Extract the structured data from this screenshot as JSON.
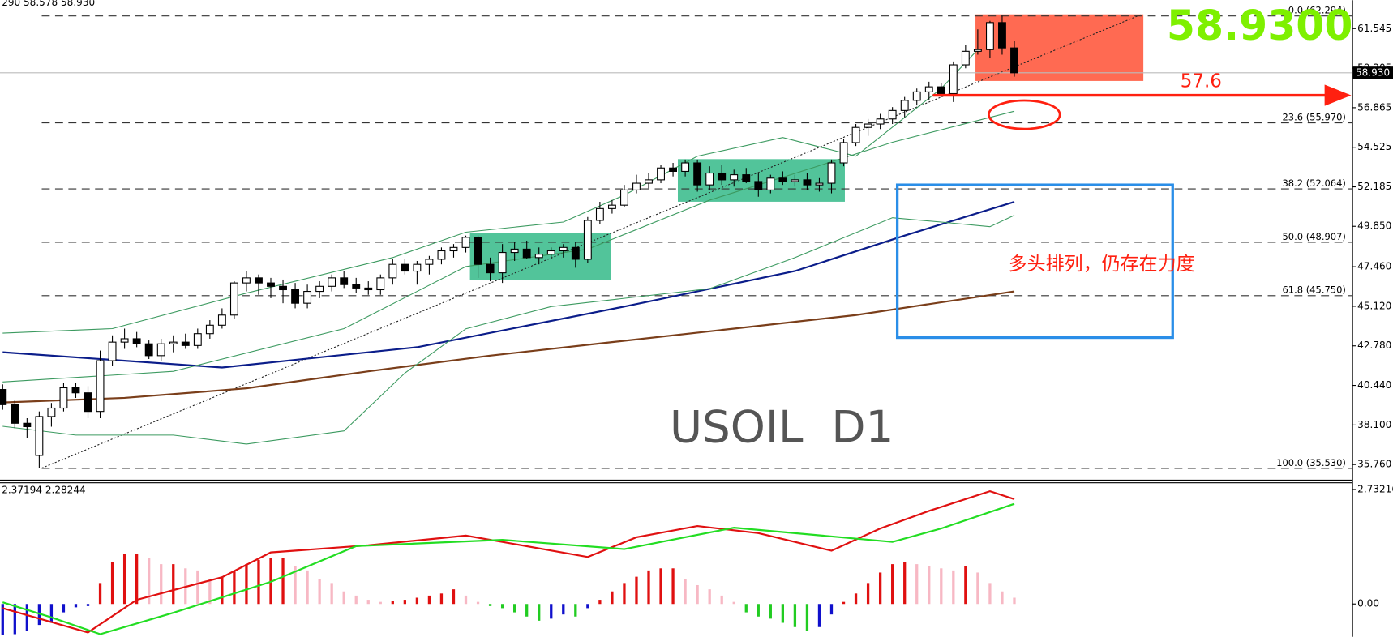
{
  "chart_data": [
    {
      "type": "candlestick",
      "title": "290 58.578 58.930",
      "open": [
        40.2,
        39.3,
        38.2,
        36.3,
        38.6,
        39.1,
        40.3,
        40.0,
        38.9,
        41.9,
        43.0,
        43.2,
        42.9,
        42.2,
        42.9,
        43.0,
        42.8,
        43.5,
        44.0,
        44.6,
        46.5,
        46.8,
        46.5,
        46.3,
        46.1,
        45.3,
        46.0,
        46.3,
        46.8,
        46.4,
        46.2,
        46.1,
        46.8,
        47.6,
        47.2,
        47.6,
        47.9,
        48.4,
        48.6,
        49.2,
        47.6,
        47.1,
        48.3,
        48.5,
        48.0,
        48.2,
        48.4,
        48.6,
        47.9,
        50.2,
        50.9,
        51.1,
        52.0,
        52.4,
        52.6,
        53.3,
        53.1,
        53.6,
        52.3,
        53.0,
        52.6,
        52.9,
        52.5,
        52.0,
        52.7,
        52.5,
        52.6,
        52.3,
        52.4,
        53.6,
        54.8,
        55.7,
        55.9,
        56.2,
        56.7,
        57.3,
        57.8,
        58.1,
        57.7,
        59.4,
        60.2,
        60.3,
        61.9,
        60.4
      ],
      "high": [
        40.5,
        39.6,
        38.5,
        38.9,
        39.4,
        40.6,
        40.6,
        40.4,
        42.5,
        43.4,
        43.8,
        43.6,
        43.1,
        43.2,
        43.4,
        43.5,
        43.8,
        44.3,
        45.0,
        46.6,
        47.2,
        47.0,
        46.8,
        46.7,
        46.5,
        46.4,
        46.6,
        47.0,
        47.2,
        46.8,
        46.6,
        47.0,
        47.9,
        47.9,
        47.8,
        48.1,
        48.6,
        48.8,
        49.3,
        49.3,
        48.0,
        48.8,
        48.9,
        49.0,
        48.6,
        48.6,
        48.8,
        48.9,
        50.4,
        51.3,
        51.4,
        52.3,
        52.9,
        53.0,
        53.5,
        53.6,
        53.8,
        53.8,
        53.4,
        53.5,
        53.2,
        53.3,
        53.0,
        52.9,
        53.1,
        52.9,
        53.0,
        52.7,
        53.8,
        55.0,
        55.9,
        56.2,
        56.5,
        56.9,
        57.5,
        58.0,
        58.4,
        58.3,
        59.6,
        60.6,
        61.5,
        62.0,
        62.3,
        60.8
      ],
      "low": [
        39.0,
        37.9,
        37.3,
        35.53,
        38.0,
        38.9,
        39.7,
        38.5,
        38.5,
        41.6,
        42.6,
        42.7,
        42.0,
        41.9,
        42.4,
        42.6,
        42.6,
        43.2,
        43.8,
        44.4,
        46.0,
        45.8,
        45.6,
        45.3,
        45.0,
        45.0,
        45.6,
        46.0,
        46.2,
        45.9,
        45.8,
        45.8,
        46.4,
        47.0,
        46.4,
        47.0,
        47.6,
        48.0,
        48.3,
        46.8,
        46.6,
        46.5,
        47.8,
        47.9,
        47.6,
        47.9,
        48.0,
        47.4,
        47.7,
        50.0,
        50.6,
        51.0,
        51.8,
        52.1,
        52.4,
        52.8,
        52.8,
        51.9,
        52.0,
        52.3,
        52.2,
        52.4,
        51.6,
        51.8,
        52.3,
        52.2,
        52.0,
        51.9,
        51.8,
        53.4,
        54.6,
        55.2,
        55.6,
        55.9,
        56.3,
        57.0,
        57.3,
        57.5,
        57.2,
        59.2,
        60.0,
        59.8,
        60.0,
        58.7
      ],
      "close": [
        39.3,
        38.2,
        38.0,
        38.6,
        39.1,
        40.3,
        40.0,
        38.9,
        41.9,
        43.0,
        43.2,
        42.9,
        42.2,
        42.9,
        43.0,
        42.8,
        43.5,
        44.0,
        44.6,
        46.5,
        46.8,
        46.5,
        46.3,
        46.1,
        45.3,
        46.0,
        46.3,
        46.8,
        46.4,
        46.2,
        46.1,
        46.8,
        47.6,
        47.2,
        47.6,
        47.9,
        48.4,
        48.6,
        49.2,
        47.6,
        47.1,
        48.3,
        48.5,
        48.0,
        48.2,
        48.4,
        48.6,
        47.9,
        50.2,
        50.9,
        51.1,
        52.0,
        52.4,
        52.6,
        53.3,
        53.1,
        53.6,
        52.3,
        53.0,
        52.6,
        52.9,
        52.5,
        52.0,
        52.7,
        52.5,
        52.6,
        52.3,
        52.4,
        53.6,
        54.8,
        55.7,
        55.9,
        56.2,
        56.7,
        57.3,
        57.8,
        58.1,
        57.7,
        59.4,
        60.2,
        60.3,
        61.9,
        60.4,
        58.93
      ],
      "up_color": "#ffffff",
      "down_color": "#000000",
      "ylim": [
        34.812,
        63.226
      ],
      "yticks": [
        61.545,
        59.205,
        56.865,
        54.525,
        52.185,
        {
          "value": 49.85,
          "label": "49.850"
        },
        {
          "value": 47.46,
          "label": "47.460"
        },
        {
          "value": 45.12,
          "label": "45.120"
        },
        {
          "value": 42.78,
          "label": "42.780"
        },
        {
          "value": 40.44,
          "label": "40.440"
        },
        {
          "value": 38.1,
          "label": "38.100"
        },
        {
          "value": 35.76,
          "label": "35.760"
        }
      ],
      "last_price": {
        "value": 58.93,
        "label": "58.930"
      },
      "overlays": [
        {
          "color": "#0b1d8a",
          "width": 2,
          "x": [
            0,
            18,
            34,
            51,
            65,
            74,
            83
          ],
          "values": [
            42.4,
            41.5,
            42.7,
            45.1,
            47.2,
            49.3,
            51.3
          ]
        },
        {
          "color": "#7a3e1a",
          "width": 2,
          "x": [
            0,
            10,
            20,
            30,
            40,
            50,
            60,
            70,
            83
          ],
          "values": [
            39.43,
            39.7,
            40.27,
            41.27,
            42.2,
            43.0,
            43.8,
            44.6,
            46.0
          ]
        },
        {
          "color": "#3c9a60",
          "width": 1,
          "x": [
            0,
            9,
            20,
            32,
            38,
            46,
            51,
            57,
            64,
            70,
            77,
            80
          ],
          "values": [
            43.53,
            43.8,
            45.9,
            48.0,
            49.5,
            50.1,
            51.7,
            54.0,
            55.1,
            54.0,
            58.0,
            60.3
          ]
        },
        {
          "color": "#3c9a60",
          "width": 1,
          "x": [
            0,
            14,
            28,
            38,
            48,
            58,
            65,
            73,
            83
          ],
          "values": [
            40.64,
            41.27,
            43.8,
            47.47,
            48.5,
            51.4,
            52.98,
            54.82,
            56.66
          ]
        },
        {
          "color": "#3c9a60",
          "width": 1,
          "x": [
            0,
            6,
            14,
            20,
            28,
            33,
            38,
            45,
            58,
            65,
            73,
            77,
            81,
            83
          ],
          "values": [
            38.02,
            37.5,
            37.5,
            36.97,
            37.75,
            41.17,
            43.79,
            45.1,
            46.16,
            48.0,
            50.36,
            50.1,
            49.83,
            50.5
          ]
        }
      ],
      "fib_levels": [
        {
          "label": "0.0 (62.294)",
          "value": 62.294
        },
        {
          "label": "23.6 (55.970)",
          "value": 55.97
        },
        {
          "label": "38.2 (52.064)",
          "value": 52.064
        },
        {
          "label": "50.0 (48.907)",
          "value": 48.907
        },
        {
          "label": "61.8 (45.750)",
          "value": 45.75
        },
        {
          "label": "100.0 (35.530)",
          "value": 35.53
        }
      ],
      "annotations": {
        "price_label": "58.9300",
        "level": {
          "label": "57.6",
          "value": 57.6
        },
        "note": "多头排列，仍存在力度",
        "symbol": "USOIL  D1"
      }
    },
    {
      "type": "macd",
      "title": "2.37194 2.28244",
      "values": [
        -0.74,
        -0.72,
        -0.65,
        -0.5,
        -0.45,
        -0.2,
        -0.08,
        -0.05,
        0.5,
        1.0,
        1.2,
        1.2,
        1.1,
        0.95,
        0.95,
        0.85,
        0.8,
        0.6,
        0.65,
        0.8,
        0.95,
        1.05,
        1.1,
        1.1,
        0.9,
        0.8,
        0.6,
        0.5,
        0.3,
        0.2,
        0.1,
        0.05,
        0.08,
        0.1,
        0.15,
        0.2,
        0.25,
        0.35,
        0.2,
        0.05,
        -0.05,
        -0.1,
        -0.2,
        -0.3,
        -0.4,
        -0.35,
        -0.25,
        -0.3,
        -0.1,
        0.1,
        0.3,
        0.5,
        0.65,
        0.8,
        0.85,
        0.85,
        0.6,
        0.45,
        0.35,
        0.2,
        0.05,
        -0.2,
        -0.3,
        -0.35,
        -0.45,
        -0.55,
        -0.65,
        -0.55,
        -0.25,
        0.05,
        0.25,
        0.5,
        0.75,
        0.95,
        1.0,
        0.95,
        0.9,
        0.85,
        0.8,
        0.9,
        0.75,
        0.5,
        0.3,
        0.15
      ],
      "bar_colors": {
        "positive_rising": "#e01010",
        "positive_falling": "#f7b8c4",
        "negative_falling": "#22cc22",
        "negative_rising": "#1010cc"
      },
      "lines": [
        {
          "color": "#e01010",
          "x": [
            0,
            7,
            11,
            18,
            22,
            30,
            38,
            41,
            48,
            52,
            57,
            62,
            68,
            72,
            76,
            81,
            83
          ],
          "values": [
            -0.1,
            -0.68,
            0.1,
            0.64,
            1.23,
            1.4,
            1.63,
            1.48,
            1.12,
            1.59,
            1.86,
            1.69,
            1.27,
            1.8,
            2.22,
            2.69,
            2.5
          ]
        },
        {
          "color": "#22dd22",
          "x": [
            0,
            4,
            8,
            14,
            22,
            29,
            41,
            51,
            60,
            73,
            77,
            83
          ],
          "values": [
            0.04,
            -0.32,
            -0.72,
            -0.21,
            0.53,
            1.38,
            1.53,
            1.31,
            1.82,
            1.48,
            1.8,
            2.39
          ]
        }
      ],
      "ylim": [
        -0.784,
        2.902
      ],
      "yticks": [
        2.73216,
        {
          "value": 0,
          "label": "0.00"
        }
      ]
    }
  ]
}
